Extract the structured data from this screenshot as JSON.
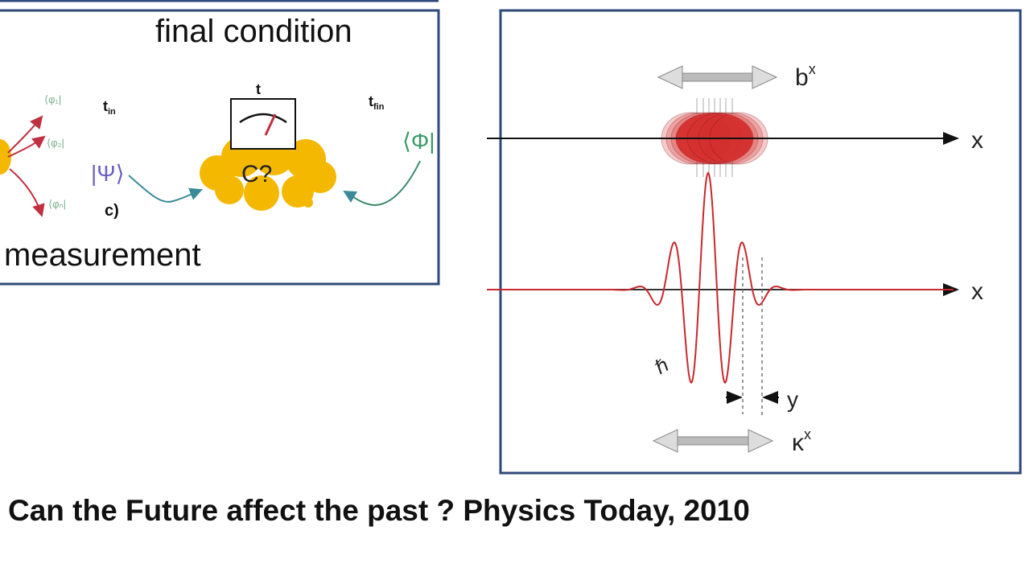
{
  "left_panel": {
    "title": "final condition",
    "subtitle": "measurement",
    "panel_label": "c)",
    "time_label": "t",
    "t_in": "t",
    "t_in_sub": "in",
    "t_fin": "t",
    "t_fin_sub": "fin",
    "initial_state": "|Ψ⟩",
    "final_state": "⟨Φ|",
    "cloud_label": "C?",
    "outcome_states": [
      "⟨φ₁|",
      "⟨φ₂|",
      "⟨φₙ|"
    ]
  },
  "right_panel": {
    "top_axis_label": "x",
    "bottom_axis_label": "x",
    "top_width_label": "b",
    "top_width_sup": "x",
    "bottom_width_label": "κ",
    "bottom_width_sup": "x",
    "offset_label": "y",
    "wavelength_label": "ℏ"
  },
  "caption": "Can the Future affect the past ? Physics Today, 2010",
  "colors": {
    "frame": "#2f4a7a",
    "cloud": "#f5b800",
    "wave": "#c8282d",
    "blob": "#d42a2a"
  }
}
